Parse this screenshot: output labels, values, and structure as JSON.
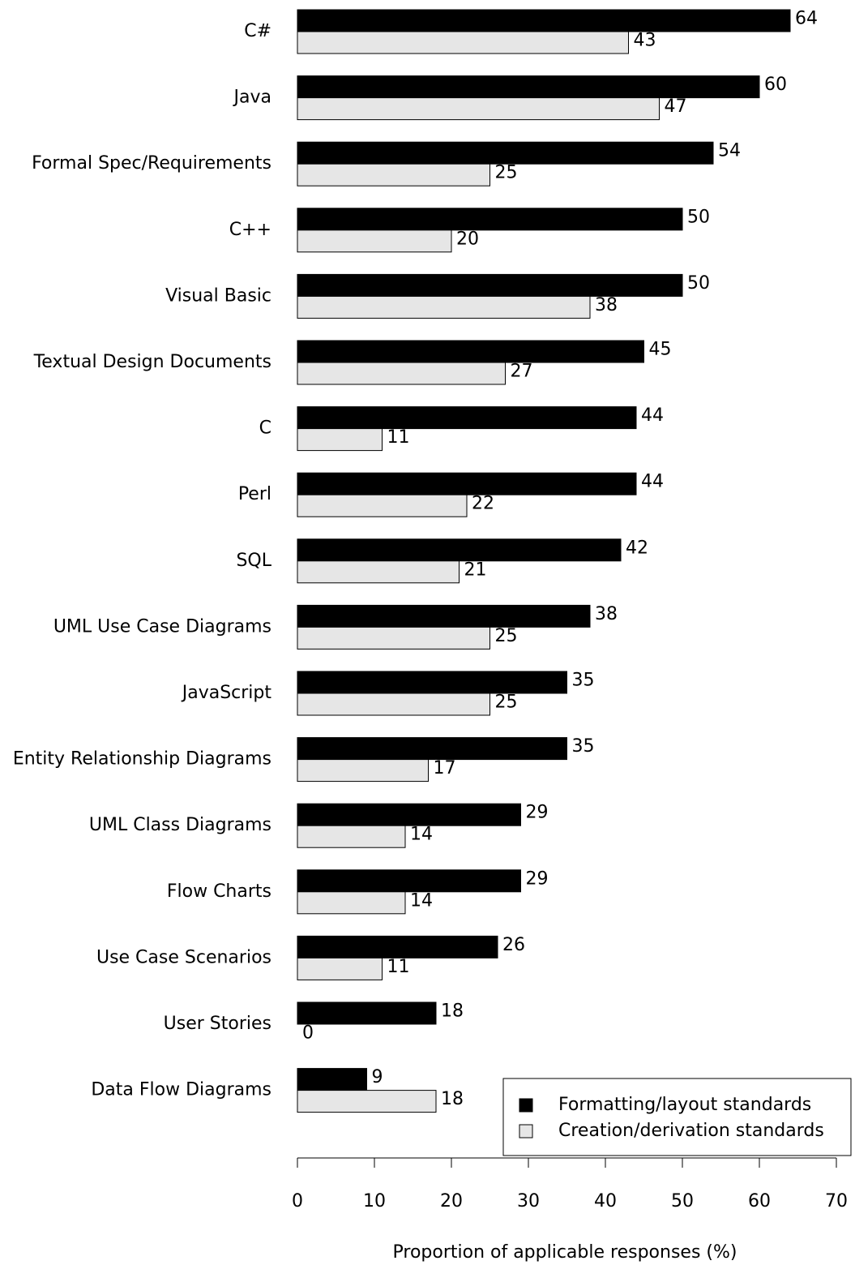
{
  "chart_data": {
    "type": "barh",
    "xlabel": "Proportion of applicable responses (%)",
    "categories": [
      "C#",
      "Java",
      "Formal Spec/Requirements",
      "C++",
      "Visual Basic",
      "Textual Design Documents",
      "C",
      "Perl",
      "SQL",
      "UML Use Case Diagrams",
      "JavaScript",
      "Entity Relationship Diagrams",
      "UML Class Diagrams",
      "Flow Charts",
      "Use Case Scenarios",
      "User Stories",
      "Data Flow Diagrams"
    ],
    "series": [
      {
        "name": "Formatting/layout standards",
        "color": "#000000",
        "values": [
          64,
          60,
          54,
          50,
          50,
          45,
          44,
          44,
          42,
          38,
          35,
          35,
          29,
          29,
          26,
          18,
          9
        ]
      },
      {
        "name": "Creation/derivation standards",
        "color": "#e6e6e6",
        "values": [
          43,
          47,
          25,
          20,
          38,
          27,
          11,
          22,
          21,
          25,
          25,
          17,
          14,
          14,
          11,
          0,
          18
        ]
      }
    ],
    "xlim": [
      0,
      70
    ],
    "xticks": [
      0,
      10,
      20,
      30,
      40,
      50,
      60,
      70
    ],
    "grid": false,
    "legend": "lower right"
  }
}
